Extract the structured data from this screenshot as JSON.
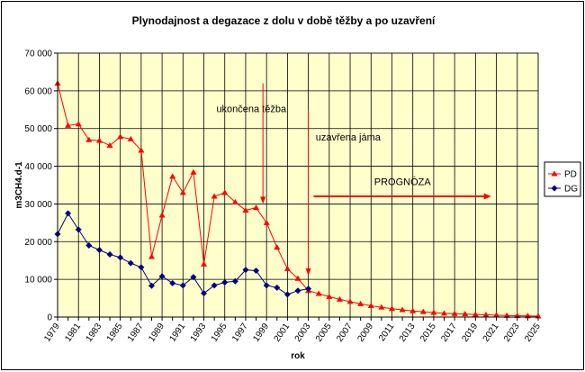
{
  "chart_data": {
    "type": "line",
    "title": "Plynodajnost a degazace z dolu v době těžby a po uzavření",
    "xlabel": "rok",
    "ylabel": "m3CH4.d-1",
    "ylim": [
      0,
      70000
    ],
    "yticks": [
      0,
      10000,
      20000,
      30000,
      40000,
      50000,
      60000,
      70000
    ],
    "ytick_labels": [
      "0",
      "10 000",
      "20 000",
      "30 000",
      "40 000",
      "50 000",
      "60 000",
      "70 000"
    ],
    "xlim": [
      1979,
      2025
    ],
    "xticks": [
      1979,
      1981,
      1983,
      1985,
      1987,
      1989,
      1991,
      1993,
      1995,
      1997,
      1999,
      2001,
      2003,
      2005,
      2007,
      2009,
      2011,
      2013,
      2015,
      2017,
      2019,
      2021,
      2023,
      2025
    ],
    "grid": true,
    "legend_position": "right",
    "series": [
      {
        "name": "PD",
        "color": "#ff0000",
        "marker": "triangle",
        "x": [
          1979,
          1980,
          1981,
          1982,
          1983,
          1984,
          1985,
          1986,
          1987,
          1988,
          1989,
          1990,
          1991,
          1992,
          1993,
          1994,
          1995,
          1996,
          1997,
          1998,
          1999,
          2000,
          2001,
          2002,
          2003,
          2004,
          2005,
          2006,
          2007,
          2008,
          2009,
          2010,
          2011,
          2012,
          2013,
          2014,
          2015,
          2016,
          2017,
          2018,
          2019,
          2020,
          2021,
          2022,
          2023,
          2024,
          2025
        ],
        "values": [
          62000,
          50800,
          51200,
          47000,
          46800,
          45500,
          47800,
          47200,
          44200,
          16000,
          27000,
          37300,
          33000,
          38400,
          14000,
          32000,
          33000,
          30500,
          28300,
          29000,
          25000,
          18500,
          12800,
          10200,
          7000,
          6200,
          5400,
          4700,
          4100,
          3500,
          3000,
          2600,
          2200,
          1900,
          1600,
          1400,
          1200,
          1000,
          900,
          800,
          700,
          600,
          500,
          400,
          350,
          300,
          250
        ]
      },
      {
        "name": "DG",
        "color": "#000080",
        "marker": "diamond",
        "x": [
          1979,
          1980,
          1981,
          1982,
          1983,
          1984,
          1985,
          1986,
          1987,
          1988,
          1989,
          1990,
          1991,
          1992,
          1993,
          1994,
          1995,
          1996,
          1997,
          1998,
          1999,
          2000,
          2001,
          2002,
          2003
        ],
        "values": [
          22000,
          27500,
          23200,
          19000,
          17800,
          16600,
          15800,
          14300,
          13200,
          8300,
          10800,
          9000,
          8400,
          10600,
          6300,
          8400,
          9200,
          9500,
          12500,
          12300,
          8400,
          7800,
          6000,
          7000,
          7500
        ]
      }
    ],
    "annotations": [
      {
        "text": "ukončena těžba",
        "year": 1999,
        "arrow_y_from": 62000,
        "arrow_y_to": 30000
      },
      {
        "text": "uzavřena jáma",
        "year": 2003,
        "arrow_y_from": 55000,
        "arrow_y_to": 11000
      },
      {
        "text": "PROGNÓZA",
        "arrow_x_from": 2003.5,
        "arrow_x_to": 2020.5,
        "arrow_y": 32000
      }
    ]
  }
}
